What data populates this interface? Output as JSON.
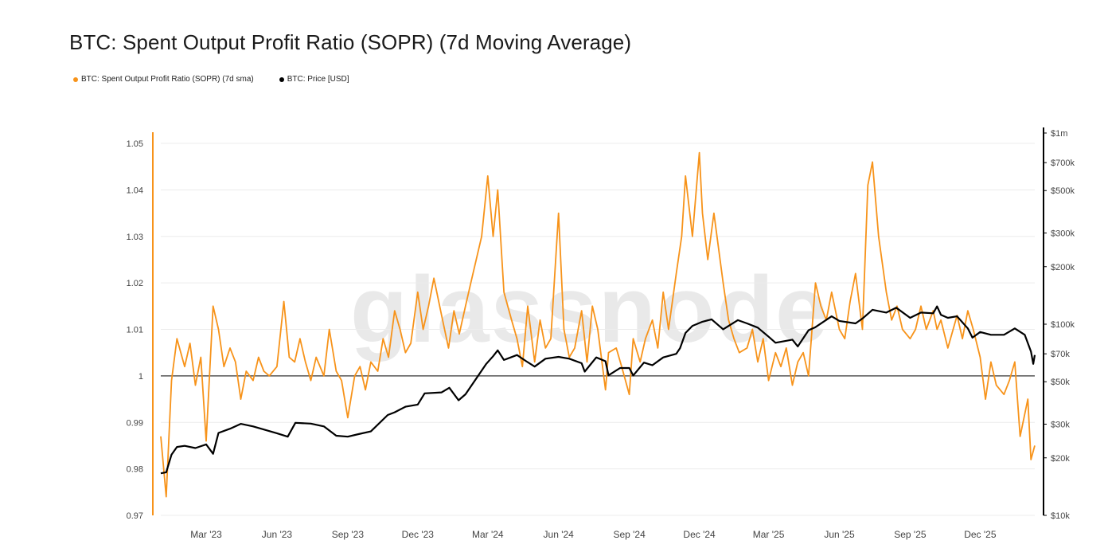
{
  "title": "BTC: Spent Output Profit Ratio (SOPR) (7d Moving Average)",
  "watermark": "glassnode",
  "legend": [
    {
      "label": "BTC: Spent Output Profit Ratio (SOPR) (7d sma)",
      "color": "#f7931a"
    },
    {
      "label": "BTC: Price [USD]",
      "color": "#000000"
    }
  ],
  "chart_data": {
    "type": "line",
    "title": "BTC: Spent Output Profit Ratio (SOPR) (7d Moving Average)",
    "xlabel": "",
    "ylabel": "",
    "x_range": [
      "2023-01-01",
      "2026-02-10"
    ],
    "x_ticks": [
      {
        "date": "2023-03-01",
        "label": "Mar '23"
      },
      {
        "date": "2023-06-01",
        "label": "Jun '23"
      },
      {
        "date": "2023-09-01",
        "label": "Sep '23"
      },
      {
        "date": "2023-12-01",
        "label": "Dec '23"
      },
      {
        "date": "2024-03-01",
        "label": "Mar '24"
      },
      {
        "date": "2024-06-01",
        "label": "Jun '24"
      },
      {
        "date": "2024-09-01",
        "label": "Sep '24"
      },
      {
        "date": "2024-12-01",
        "label": "Dec '24"
      },
      {
        "date": "2025-03-01",
        "label": "Mar '25"
      },
      {
        "date": "2025-06-01",
        "label": "Jun '25"
      },
      {
        "date": "2025-09-01",
        "label": "Sep '25"
      },
      {
        "date": "2025-12-01",
        "label": "Dec '25"
      }
    ],
    "left_axis": {
      "ylim": [
        0.97,
        1.05
      ],
      "ticks": [
        1.05,
        1.04,
        1.03,
        1.02,
        1.01,
        1,
        0.99,
        0.98,
        0.97
      ],
      "tick_labels": [
        "1.05",
        "1.04",
        "1.03",
        "1.02",
        "1.01",
        "1",
        "0.99",
        "0.98",
        "0.97"
      ],
      "color": "#f7931a"
    },
    "right_axis": {
      "scale": "log",
      "ylim": [
        10000,
        1000000
      ],
      "ticks": [
        1000000,
        700000,
        500000,
        300000,
        200000,
        100000,
        70000,
        50000,
        30000,
        20000,
        10000
      ],
      "tick_labels": [
        "$1m",
        "$700k",
        "$500k",
        "$300k",
        "$200k",
        "$100k",
        "$70k",
        "$50k",
        "$30k",
        "$20k",
        "$10k"
      ],
      "color": "#000000"
    },
    "reference_line": {
      "y": 1,
      "color": "#555555"
    },
    "grid": "horizontal",
    "series": [
      {
        "name": "BTC: Spent Output Profit Ratio (SOPR) (7d sma)",
        "axis": "left",
        "color": "#f7931a",
        "x": [
          "2023-01-01",
          "2023-01-08",
          "2023-01-15",
          "2023-01-22",
          "2023-02-01",
          "2023-02-08",
          "2023-02-15",
          "2023-02-22",
          "2023-03-01",
          "2023-03-10",
          "2023-03-17",
          "2023-03-24",
          "2023-04-01",
          "2023-04-08",
          "2023-04-15",
          "2023-04-22",
          "2023-05-01",
          "2023-05-08",
          "2023-05-15",
          "2023-05-22",
          "2023-06-01",
          "2023-06-10",
          "2023-06-17",
          "2023-06-24",
          "2023-07-01",
          "2023-07-08",
          "2023-07-15",
          "2023-07-22",
          "2023-08-01",
          "2023-08-08",
          "2023-08-17",
          "2023-08-24",
          "2023-09-01",
          "2023-09-10",
          "2023-09-17",
          "2023-09-24",
          "2023-10-01",
          "2023-10-10",
          "2023-10-17",
          "2023-10-24",
          "2023-11-01",
          "2023-11-08",
          "2023-11-15",
          "2023-11-22",
          "2023-12-01",
          "2023-12-08",
          "2023-12-15",
          "2023-12-22",
          "2024-01-01",
          "2024-01-10",
          "2024-01-17",
          "2024-01-24",
          "2024-02-01",
          "2024-02-08",
          "2024-02-15",
          "2024-02-22",
          "2024-03-01",
          "2024-03-08",
          "2024-03-14",
          "2024-03-22",
          "2024-04-01",
          "2024-04-08",
          "2024-04-15",
          "2024-04-22",
          "2024-05-01",
          "2024-05-08",
          "2024-05-15",
          "2024-05-22",
          "2024-06-01",
          "2024-06-08",
          "2024-06-15",
          "2024-06-22",
          "2024-07-01",
          "2024-07-08",
          "2024-07-15",
          "2024-07-22",
          "2024-08-01",
          "2024-08-05",
          "2024-08-15",
          "2024-08-22",
          "2024-09-01",
          "2024-09-06",
          "2024-09-15",
          "2024-09-22",
          "2024-10-01",
          "2024-10-08",
          "2024-10-15",
          "2024-10-22",
          "2024-11-01",
          "2024-11-08",
          "2024-11-13",
          "2024-11-22",
          "2024-12-01",
          "2024-12-05",
          "2024-12-12",
          "2024-12-20",
          "2025-01-01",
          "2025-01-08",
          "2025-01-15",
          "2025-01-22",
          "2025-02-01",
          "2025-02-08",
          "2025-02-15",
          "2025-02-22",
          "2025-03-01",
          "2025-03-10",
          "2025-03-17",
          "2025-03-24",
          "2025-04-01",
          "2025-04-08",
          "2025-04-15",
          "2025-04-22",
          "2025-05-01",
          "2025-05-08",
          "2025-05-15",
          "2025-05-22",
          "2025-06-01",
          "2025-06-08",
          "2025-06-15",
          "2025-06-22",
          "2025-07-01",
          "2025-07-08",
          "2025-07-14",
          "2025-07-22",
          "2025-08-01",
          "2025-08-08",
          "2025-08-15",
          "2025-08-22",
          "2025-09-01",
          "2025-09-08",
          "2025-09-15",
          "2025-09-22",
          "2025-10-01",
          "2025-10-06",
          "2025-10-11",
          "2025-10-20",
          "2025-11-01",
          "2025-11-08",
          "2025-11-15",
          "2025-11-22",
          "2025-12-01",
          "2025-12-08",
          "2025-12-15",
          "2025-12-22",
          "2026-01-01",
          "2026-01-08",
          "2026-01-15",
          "2026-01-22",
          "2026-02-01",
          "2026-02-05",
          "2026-02-10"
        ],
        "values": [
          0.987,
          0.974,
          0.999,
          1.008,
          1.002,
          1.007,
          0.998,
          1.004,
          0.986,
          1.015,
          1.01,
          1.002,
          1.006,
          1.003,
          0.995,
          1.001,
          0.999,
          1.004,
          1.001,
          1.0,
          1.002,
          1.016,
          1.004,
          1.003,
          1.008,
          1.003,
          0.999,
          1.004,
          1.0,
          1.01,
          1.001,
          0.999,
          0.991,
          1.0,
          1.002,
          0.997,
          1.003,
          1.001,
          1.008,
          1.004,
          1.014,
          1.01,
          1.005,
          1.007,
          1.018,
          1.01,
          1.015,
          1.021,
          1.013,
          1.006,
          1.014,
          1.009,
          1.015,
          1.02,
          1.025,
          1.03,
          1.043,
          1.03,
          1.04,
          1.018,
          1.012,
          1.008,
          1.002,
          1.015,
          1.003,
          1.012,
          1.006,
          1.008,
          1.035,
          1.01,
          1.004,
          1.006,
          1.014,
          1.003,
          1.015,
          1.01,
          0.997,
          1.005,
          1.006,
          1.002,
          0.996,
          1.008,
          1.003,
          1.008,
          1.012,
          1.006,
          1.018,
          1.01,
          1.022,
          1.03,
          1.043,
          1.03,
          1.048,
          1.035,
          1.025,
          1.035,
          1.02,
          1.012,
          1.008,
          1.005,
          1.006,
          1.01,
          1.003,
          1.008,
          0.999,
          1.005,
          1.002,
          1.006,
          0.998,
          1.003,
          1.005,
          1.0,
          1.02,
          1.015,
          1.012,
          1.018,
          1.01,
          1.008,
          1.016,
          1.022,
          1.01,
          1.041,
          1.046,
          1.03,
          1.018,
          1.012,
          1.015,
          1.01,
          1.008,
          1.01,
          1.015,
          1.01,
          1.014,
          1.01,
          1.012,
          1.006,
          1.013,
          1.008,
          1.014,
          1.01,
          1.004,
          0.995,
          1.003,
          0.998,
          0.996,
          0.999,
          1.003,
          0.987,
          0.995,
          0.982,
          0.985
        ]
      },
      {
        "name": "BTC: Price [USD]",
        "axis": "right",
        "color": "#000000",
        "x": [
          "2023-01-01",
          "2023-01-08",
          "2023-01-15",
          "2023-01-22",
          "2023-02-01",
          "2023-02-15",
          "2023-03-01",
          "2023-03-10",
          "2023-03-17",
          "2023-04-01",
          "2023-04-15",
          "2023-05-01",
          "2023-06-01",
          "2023-06-15",
          "2023-06-25",
          "2023-07-15",
          "2023-08-01",
          "2023-08-17",
          "2023-09-01",
          "2023-09-15",
          "2023-10-01",
          "2023-10-23",
          "2023-11-01",
          "2023-11-15",
          "2023-12-01",
          "2023-12-10",
          "2024-01-01",
          "2024-01-11",
          "2024-01-23",
          "2024-02-01",
          "2024-02-15",
          "2024-02-28",
          "2024-03-08",
          "2024-03-14",
          "2024-03-22",
          "2024-04-08",
          "2024-04-20",
          "2024-05-01",
          "2024-05-15",
          "2024-06-01",
          "2024-06-15",
          "2024-07-01",
          "2024-07-05",
          "2024-07-20",
          "2024-08-01",
          "2024-08-05",
          "2024-08-20",
          "2024-09-01",
          "2024-09-06",
          "2024-09-20",
          "2024-10-01",
          "2024-10-15",
          "2024-11-01",
          "2024-11-06",
          "2024-11-13",
          "2024-11-22",
          "2024-12-05",
          "2024-12-17",
          "2025-01-01",
          "2025-01-20",
          "2025-02-01",
          "2025-02-15",
          "2025-03-01",
          "2025-03-10",
          "2025-04-01",
          "2025-04-08",
          "2025-04-22",
          "2025-05-01",
          "2025-05-22",
          "2025-06-01",
          "2025-06-22",
          "2025-07-01",
          "2025-07-14",
          "2025-08-01",
          "2025-08-14",
          "2025-09-01",
          "2025-09-15",
          "2025-10-01",
          "2025-10-06",
          "2025-10-11",
          "2025-10-20",
          "2025-11-01",
          "2025-11-15",
          "2025-11-21",
          "2025-12-01",
          "2025-12-15",
          "2026-01-01",
          "2026-01-15",
          "2026-01-28",
          "2026-02-05",
          "2026-02-08",
          "2026-02-10"
        ],
        "values": [
          16600,
          16800,
          20800,
          22800,
          23100,
          22500,
          23500,
          21000,
          27000,
          28400,
          30100,
          29200,
          26900,
          25800,
          30500,
          30200,
          29200,
          26100,
          25800,
          26600,
          27500,
          33500,
          34600,
          37000,
          38000,
          43500,
          44000,
          46500,
          40000,
          43000,
          52000,
          62000,
          68000,
          73000,
          65000,
          69000,
          64000,
          60000,
          66000,
          67500,
          66000,
          62500,
          56500,
          67000,
          64000,
          54000,
          59000,
          59000,
          53900,
          63000,
          61000,
          67000,
          70000,
          75000,
          90000,
          98000,
          103000,
          106000,
          94000,
          105000,
          101000,
          96000,
          86000,
          80000,
          83000,
          76500,
          93000,
          96500,
          110000,
          104000,
          101000,
          107000,
          119000,
          115000,
          122000,
          108000,
          115000,
          114000,
          124000,
          112000,
          108000,
          110000,
          95000,
          85000,
          91000,
          88000,
          88000,
          95000,
          88000,
          72000,
          62000,
          69000
        ]
      }
    ]
  }
}
